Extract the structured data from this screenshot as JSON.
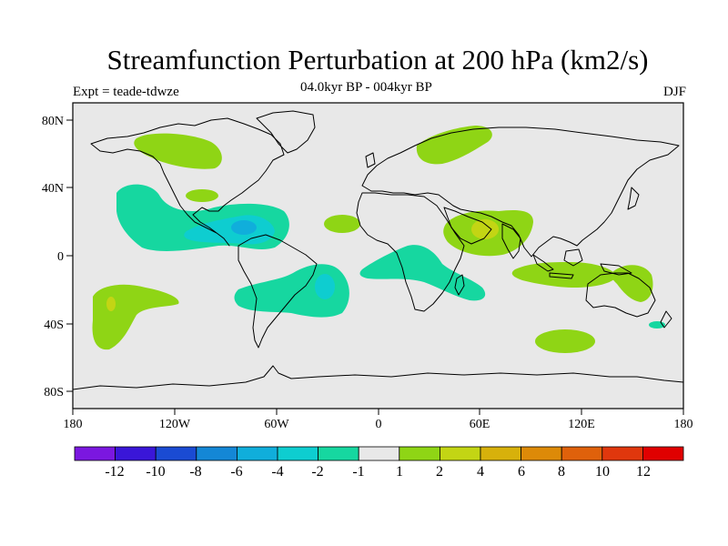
{
  "title": "Streamfunction Perturbation at 200 hPa (km2/s)",
  "left_label": "Expt = teade-tdwze",
  "center_label": "04.0kyr BP - 004kyr BP",
  "right_label": "DJF",
  "lon_ticks": [
    "180",
    "120W",
    "60W",
    "0",
    "60E",
    "120E",
    "180"
  ],
  "lat_ticks": [
    "80N",
    "40N",
    "0",
    "40S",
    "80S"
  ],
  "colorbar": {
    "colors": [
      "#7b17e0",
      "#3a16d8",
      "#1a4bd3",
      "#1487d6",
      "#10aedb",
      "#0ecdd0",
      "#16d7a0",
      "#e8e8e8",
      "#8fd515",
      "#c3d514",
      "#d7b10b",
      "#dd8a08",
      "#df610b",
      "#e0370d",
      "#e00000"
    ],
    "labels": [
      "-12",
      "-10",
      "-8",
      "-6",
      "-4",
      "-2",
      "-1",
      "1",
      "2",
      "4",
      "6",
      "8",
      "10",
      "12"
    ]
  },
  "colors": {
    "land_sea_bg": "#e8e8e8",
    "neg_1_2": "#16d7a0",
    "neg_2_4": "#0ecdd0",
    "neg_4_6": "#10aedb",
    "pos_1_2": "#8fd515",
    "pos_2_4": "#c3d514",
    "pos_4_6": "#d7b10b"
  }
}
